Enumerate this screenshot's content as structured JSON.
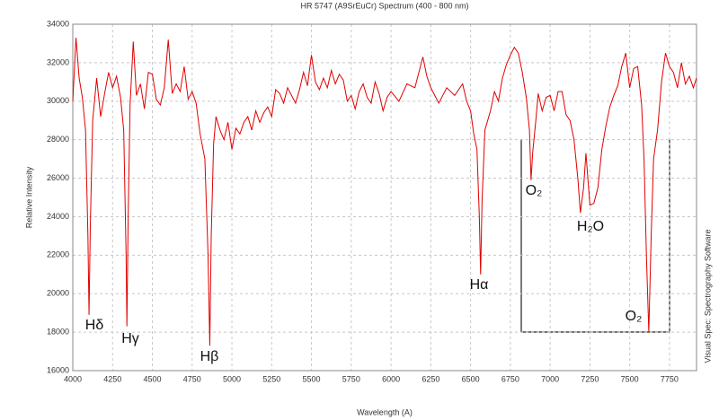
{
  "chart_data": {
    "type": "line",
    "title": "HR 5747 (A9SrEuCr)  Spectrum (400 - 800 nm)",
    "x_label": "Wavelength (A)",
    "y_label": "Relative Intensity",
    "side_note": "Visual Spec: Spectrography Software",
    "annotations": [
      "Hδ",
      "Hγ",
      "Hβ",
      "Hα",
      "O₂",
      "H₂O",
      "O₂"
    ],
    "xlim": [
      4000,
      7920
    ],
    "ylim": [
      16000,
      34000
    ],
    "xticks": [
      4000,
      4250,
      4500,
      4750,
      5000,
      5250,
      5500,
      5750,
      6000,
      6250,
      6500,
      6750,
      7000,
      7250,
      7500,
      7750
    ],
    "yticks": [
      16000,
      18000,
      20000,
      22000,
      24000,
      26000,
      28000,
      30000,
      32000,
      34000
    ],
    "grid": true,
    "series": [
      {
        "color": "#e00000",
        "x": [
          4000,
          4020,
          4040,
          4060,
          4080,
          4095,
          4102,
          4110,
          4125,
          4150,
          4175,
          4200,
          4225,
          4250,
          4275,
          4300,
          4320,
          4335,
          4340,
          4348,
          4360,
          4380,
          4400,
          4425,
          4450,
          4475,
          4500,
          4525,
          4550,
          4575,
          4600,
          4625,
          4650,
          4675,
          4700,
          4725,
          4750,
          4775,
          4800,
          4830,
          4850,
          4861,
          4870,
          4885,
          4900,
          4925,
          4950,
          4975,
          5000,
          5025,
          5050,
          5075,
          5100,
          5125,
          5150,
          5175,
          5200,
          5225,
          5250,
          5275,
          5300,
          5325,
          5350,
          5375,
          5400,
          5425,
          5450,
          5475,
          5500,
          5525,
          5550,
          5575,
          5600,
          5625,
          5650,
          5675,
          5700,
          5725,
          5750,
          5775,
          5800,
          5825,
          5850,
          5875,
          5900,
          5925,
          5950,
          5975,
          6000,
          6050,
          6100,
          6150,
          6200,
          6225,
          6250,
          6300,
          6350,
          6400,
          6450,
          6475,
          6500,
          6520,
          6540,
          6555,
          6563,
          6572,
          6590,
          6625,
          6650,
          6675,
          6700,
          6725,
          6750,
          6775,
          6800,
          6825,
          6850,
          6870,
          6880,
          6890,
          6910,
          6925,
          6950,
          6975,
          7000,
          7025,
          7050,
          7075,
          7100,
          7125,
          7150,
          7175,
          7190,
          7210,
          7225,
          7250,
          7275,
          7300,
          7325,
          7350,
          7375,
          7400,
          7425,
          7450,
          7475,
          7500,
          7525,
          7550,
          7575,
          7590,
          7605,
          7620,
          7635,
          7650,
          7675,
          7700,
          7725,
          7750,
          7775,
          7800,
          7825,
          7850,
          7875,
          7900,
          7920
        ],
        "values": [
          30000,
          33300,
          31200,
          30200,
          28500,
          23000,
          18900,
          23500,
          29000,
          31200,
          29200,
          30400,
          31500,
          30700,
          31300,
          30200,
          28500,
          22000,
          18300,
          24000,
          29800,
          33100,
          30300,
          30900,
          29600,
          31500,
          31400,
          30100,
          29800,
          30700,
          33200,
          30400,
          30900,
          30500,
          31800,
          30100,
          30500,
          29900,
          28300,
          27000,
          22000,
          17300,
          23000,
          27800,
          29200,
          28500,
          28000,
          28900,
          27500,
          28600,
          28300,
          28900,
          29200,
          28500,
          29500,
          28900,
          29400,
          29700,
          29200,
          30600,
          30400,
          29900,
          30700,
          30300,
          29900,
          30600,
          31500,
          30800,
          32400,
          31000,
          30600,
          31200,
          30700,
          31600,
          30900,
          31400,
          31100,
          30000,
          30300,
          29600,
          30500,
          30900,
          30200,
          29900,
          31000,
          30400,
          29500,
          30200,
          30500,
          30000,
          30900,
          30700,
          32300,
          31300,
          30700,
          29900,
          30700,
          30300,
          30900,
          30000,
          29500,
          28300,
          27500,
          24000,
          21000,
          24800,
          28500,
          29500,
          30500,
          30000,
          31200,
          31900,
          32400,
          32800,
          32500,
          31500,
          30200,
          28500,
          25900,
          27300,
          29000,
          30400,
          29500,
          30200,
          30300,
          29500,
          30500,
          30500,
          29300,
          29000,
          28000,
          25900,
          24200,
          25500,
          27300,
          24600,
          24700,
          25500,
          27500,
          28700,
          29700,
          30300,
          30800,
          31800,
          32500,
          30700,
          31700,
          31800,
          29800,
          27000,
          22000,
          18000,
          23000,
          27000,
          28500,
          31000,
          32500,
          31800,
          31500,
          30700,
          32000,
          30900,
          31300,
          30700,
          31200
        ]
      }
    ]
  }
}
